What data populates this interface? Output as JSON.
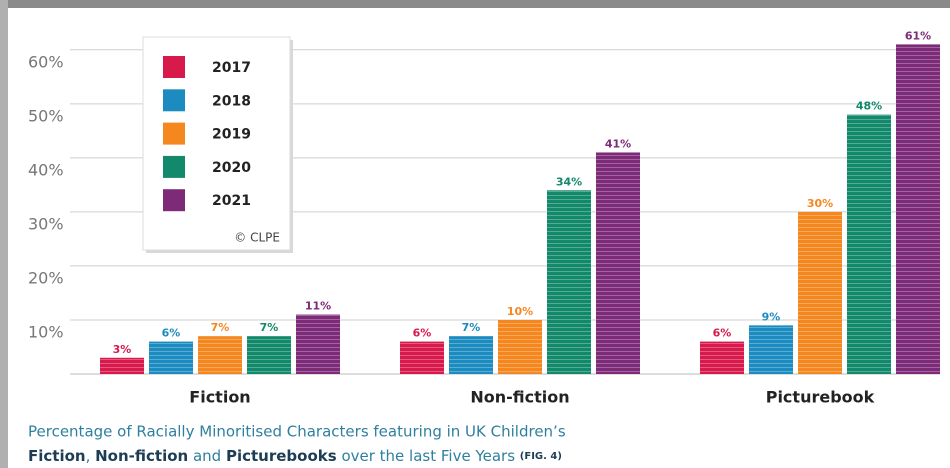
{
  "chart_data": {
    "type": "bar",
    "categories": [
      "Fiction",
      "Non-fiction",
      "Picturebook"
    ],
    "series": [
      {
        "name": "2017",
        "color": "#d8194b",
        "values": [
          3,
          6,
          6
        ],
        "value_labels": [
          "3%",
          "6%",
          "6%"
        ]
      },
      {
        "name": "2018",
        "color": "#1c8cc0",
        "values": [
          6,
          7,
          9
        ],
        "value_labels": [
          "6%",
          "7%",
          "9%"
        ]
      },
      {
        "name": "2019",
        "color": "#f5871f",
        "values": [
          7,
          10,
          30
        ],
        "value_labels": [
          "7%",
          "10%",
          "30%"
        ]
      },
      {
        "name": "2020",
        "color": "#12896a",
        "values": [
          7,
          34,
          48
        ],
        "value_labels": [
          "7%",
          "34%",
          "48%"
        ]
      },
      {
        "name": "2021",
        "color": "#7d2b79",
        "values": [
          11,
          41,
          61
        ],
        "value_labels": [
          "11%",
          "41%",
          "61%"
        ]
      }
    ],
    "ylim": [
      0,
      62
    ],
    "yticks": [
      {
        "value": 10,
        "label": "10%"
      },
      {
        "value": 20,
        "label": "20%"
      },
      {
        "value": 30,
        "label": "30%"
      },
      {
        "value": 40,
        "label": "40%"
      },
      {
        "value": 50,
        "label": "50%"
      },
      {
        "value": 60,
        "label": "60%"
      }
    ],
    "grid": true,
    "legend": "top-left",
    "copyright": "© CLPE",
    "caption": {
      "line1": "Percentage of Racially Minoritised Characters featuring in UK Children’s",
      "line2": [
        {
          "text": "Fiction",
          "bold": true
        },
        {
          "text": ", ",
          "bold": false
        },
        {
          "text": "Non-fiction",
          "bold": true
        },
        {
          "text": " and ",
          "bold": false
        },
        {
          "text": "Picturebooks",
          "bold": true
        },
        {
          "text": " over the last Five Years ",
          "bold": false
        },
        {
          "text": "(FIG. 4)",
          "bold": true,
          "small": true
        }
      ]
    }
  }
}
